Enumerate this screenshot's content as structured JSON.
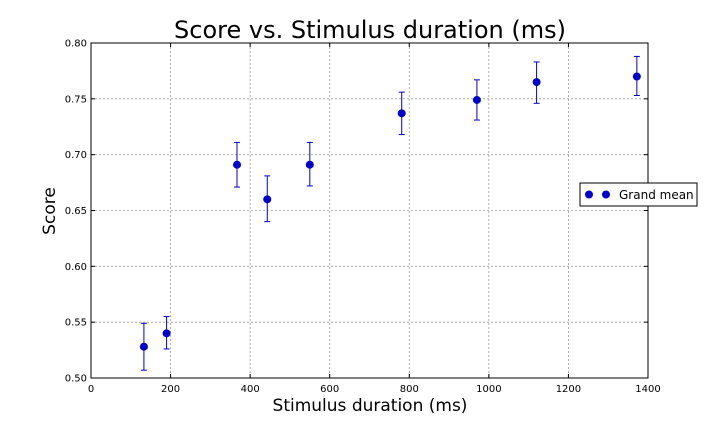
{
  "chart_data": {
    "type": "scatter",
    "title": "Score vs. Stimulus duration (ms)",
    "xlabel": "Stimulus duration (ms)",
    "ylabel": "Score",
    "xlim": [
      0,
      1400
    ],
    "ylim": [
      0.5,
      0.8
    ],
    "xticks": [
      0,
      200,
      400,
      600,
      800,
      1000,
      1200,
      1400
    ],
    "xtick_labels": [
      "0",
      "200",
      "400",
      "600",
      "800",
      "1000",
      "1200",
      "1400"
    ],
    "yticks": [
      0.5,
      0.55,
      0.6,
      0.65,
      0.7,
      0.75,
      0.8
    ],
    "ytick_labels": [
      "0.50",
      "0.55",
      "0.60",
      "0.65",
      "0.70",
      "0.75",
      "0.80"
    ],
    "grid": true,
    "legend_position": "right",
    "series": [
      {
        "name": "Grand mean",
        "color": "#0000cc",
        "marker": "circle",
        "points": [
          {
            "x": 133,
            "y": 0.528,
            "err_low": 0.507,
            "err_high": 0.549
          },
          {
            "x": 190,
            "y": 0.54,
            "err_low": 0.526,
            "err_high": 0.555
          },
          {
            "x": 367,
            "y": 0.691,
            "err_low": 0.671,
            "err_high": 0.711
          },
          {
            "x": 443,
            "y": 0.66,
            "err_low": 0.64,
            "err_high": 0.681
          },
          {
            "x": 550,
            "y": 0.691,
            "err_low": 0.672,
            "err_high": 0.711
          },
          {
            "x": 781,
            "y": 0.737,
            "err_low": 0.718,
            "err_high": 0.756
          },
          {
            "x": 970,
            "y": 0.749,
            "err_low": 0.731,
            "err_high": 0.767
          },
          {
            "x": 1120,
            "y": 0.765,
            "err_low": 0.746,
            "err_high": 0.783
          },
          {
            "x": 1372,
            "y": 0.77,
            "err_low": 0.753,
            "err_high": 0.788
          }
        ]
      }
    ]
  }
}
